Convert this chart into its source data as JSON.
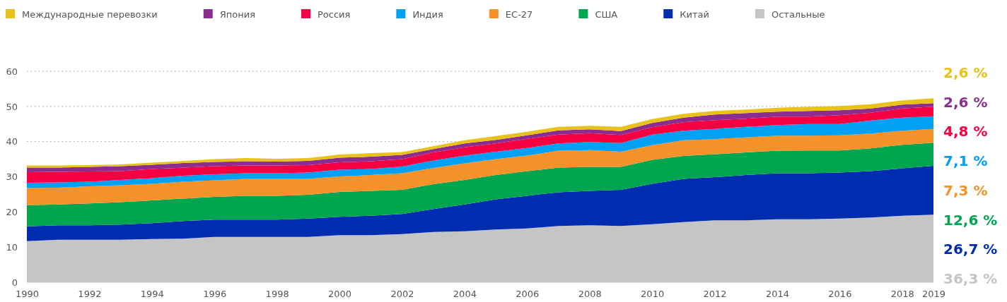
{
  "chart_data": {
    "type": "area",
    "stacked": true,
    "x": [
      1990,
      1991,
      1992,
      1993,
      1994,
      1995,
      1996,
      1997,
      1998,
      1999,
      2000,
      2001,
      2002,
      2003,
      2004,
      2005,
      2006,
      2007,
      2008,
      2009,
      2010,
      2011,
      2012,
      2013,
      2014,
      2015,
      2016,
      2017,
      2018,
      2019
    ],
    "xlim": [
      1990,
      2019
    ],
    "xticks": [
      1990,
      1992,
      1994,
      1996,
      1998,
      2000,
      2002,
      2004,
      2006,
      2008,
      2010,
      2012,
      2014,
      2016,
      2018,
      2019
    ],
    "ylim": [
      0,
      60
    ],
    "yticks": [
      0,
      10,
      20,
      30,
      40,
      50,
      60
    ],
    "grid": "y",
    "legend": "top left",
    "series": [
      {
        "name": "Остальные",
        "color": "#c5c5c5",
        "values": [
          11.7,
          12.1,
          12.1,
          12.1,
          12.3,
          12.4,
          12.9,
          12.9,
          12.9,
          12.9,
          13.4,
          13.4,
          13.7,
          14.3,
          14.5,
          15.0,
          15.3,
          16.0,
          16.2,
          16.0,
          16.5,
          17.1,
          17.6,
          17.6,
          17.9,
          17.9,
          18.1,
          18.4,
          18.9,
          19.2
        ]
      },
      {
        "name": "Китай",
        "color": "#002db0",
        "values": [
          4.2,
          4.1,
          4.1,
          4.3,
          4.5,
          5.0,
          4.9,
          4.9,
          4.9,
          5.2,
          5.2,
          5.5,
          5.7,
          6.5,
          7.6,
          8.6,
          9.3,
          9.6,
          9.8,
          10.3,
          11.5,
          12.3,
          12.3,
          12.9,
          13.1,
          13.1,
          13.1,
          13.2,
          13.5,
          13.9
        ]
      },
      {
        "name": "США",
        "color": "#00a54f",
        "values": [
          6.0,
          5.9,
          6.2,
          6.4,
          6.5,
          6.4,
          6.5,
          6.8,
          6.8,
          6.8,
          7.1,
          7.1,
          6.9,
          7.1,
          7.0,
          6.9,
          7.0,
          7.0,
          6.8,
          6.5,
          6.8,
          6.5,
          6.5,
          6.4,
          6.4,
          6.5,
          6.3,
          6.5,
          6.7,
          6.6
        ]
      },
      {
        "name": "ЕС-27",
        "color": "#f5922a",
        "values": [
          4.9,
          4.8,
          4.9,
          4.8,
          4.7,
          4.8,
          4.7,
          4.8,
          4.8,
          4.5,
          4.4,
          4.5,
          4.7,
          4.6,
          4.7,
          4.5,
          4.4,
          4.8,
          4.8,
          4.3,
          4.2,
          4.5,
          4.3,
          4.3,
          4.3,
          4.2,
          4.3,
          4.2,
          4.0,
          3.9
        ]
      },
      {
        "name": "Индия",
        "color": "#00a0f5",
        "values": [
          1.5,
          1.5,
          1.3,
          1.5,
          1.6,
          1.7,
          1.7,
          1.6,
          1.6,
          1.8,
          1.9,
          1.7,
          1.9,
          2.1,
          2.2,
          2.1,
          2.2,
          2.1,
          2.3,
          2.5,
          3.0,
          2.7,
          2.9,
          3.0,
          3.0,
          3.3,
          3.2,
          3.7,
          3.7,
          3.6
        ]
      },
      {
        "name": "Россия",
        "color": "#f50040",
        "values": [
          3.0,
          3.0,
          2.9,
          2.5,
          2.6,
          2.3,
          2.3,
          2.2,
          2.2,
          2.1,
          2.1,
          2.2,
          2.1,
          2.3,
          2.4,
          2.4,
          2.6,
          2.5,
          2.5,
          2.3,
          2.1,
          2.4,
          2.5,
          2.3,
          2.4,
          2.1,
          2.5,
          2.2,
          2.6,
          2.7
        ]
      },
      {
        "name": "Япония",
        "color": "#8b2d8f",
        "values": [
          1.3,
          1.2,
          1.3,
          1.4,
          1.2,
          1.3,
          1.2,
          1.2,
          1.1,
          1.2,
          1.3,
          1.3,
          1.2,
          1.0,
          1.1,
          1.0,
          1.0,
          1.2,
          1.1,
          1.1,
          1.2,
          1.3,
          1.6,
          1.6,
          1.4,
          1.6,
          1.4,
          1.2,
          1.1,
          1.0
        ]
      },
      {
        "name": "Международные перевозки",
        "color": "#e8c21a",
        "values": [
          0.6,
          0.6,
          0.5,
          0.5,
          0.6,
          0.6,
          0.8,
          0.9,
          0.8,
          0.8,
          0.9,
          1.0,
          0.8,
          0.8,
          0.9,
          1.1,
          1.0,
          1.0,
          1.0,
          1.2,
          1.1,
          1.1,
          1.0,
          1.0,
          1.1,
          1.2,
          1.2,
          1.2,
          1.2,
          1.4
        ]
      }
    ],
    "annotations": [
      "2,6 %",
      "2,6 %",
      "4,8 %",
      "7,1 %",
      "7,3 %",
      "12,6 %",
      "26,7 %",
      "36,3 %"
    ]
  }
}
